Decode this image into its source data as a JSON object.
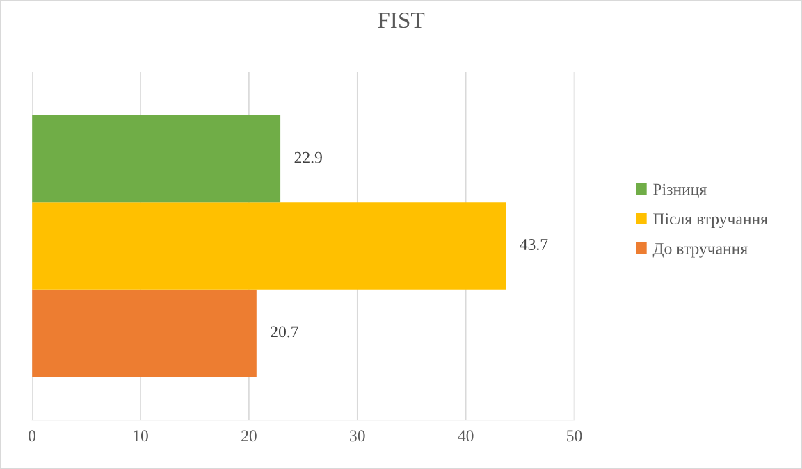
{
  "chart_data": {
    "type": "bar",
    "orientation": "horizontal",
    "title": "FIST",
    "categories": [
      null
    ],
    "series": [
      {
        "name": "До втручання",
        "color": "#ed7d31",
        "values": [
          20.7
        ]
      },
      {
        "name": "Після втручання",
        "color": "#ffc000",
        "values": [
          43.7
        ]
      },
      {
        "name": "Різниця",
        "color": "#70ad47",
        "values": [
          22.9
        ]
      }
    ],
    "xlim": [
      0,
      50
    ],
    "xticks": [
      0,
      10,
      20,
      30,
      40,
      50
    ],
    "grid": "x",
    "legend": "right",
    "data_labels": true
  }
}
